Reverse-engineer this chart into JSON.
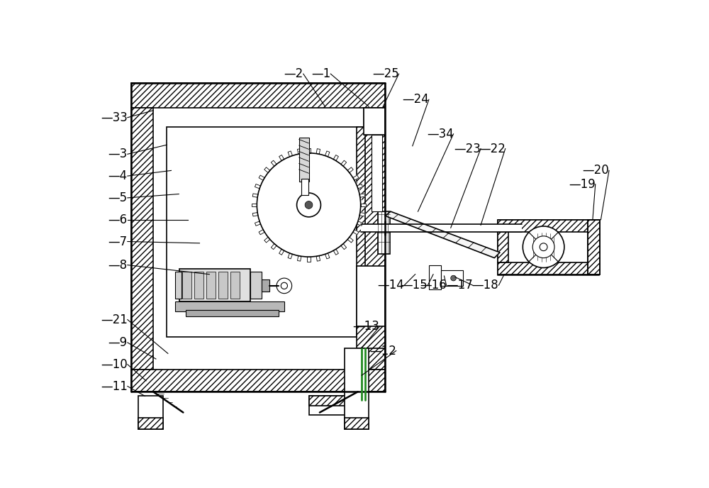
{
  "bg_color": "#ffffff",
  "line_color": "#000000",
  "fig_width": 10.0,
  "fig_height": 6.88,
  "dpi": 100,
  "label_fontsize": 12
}
